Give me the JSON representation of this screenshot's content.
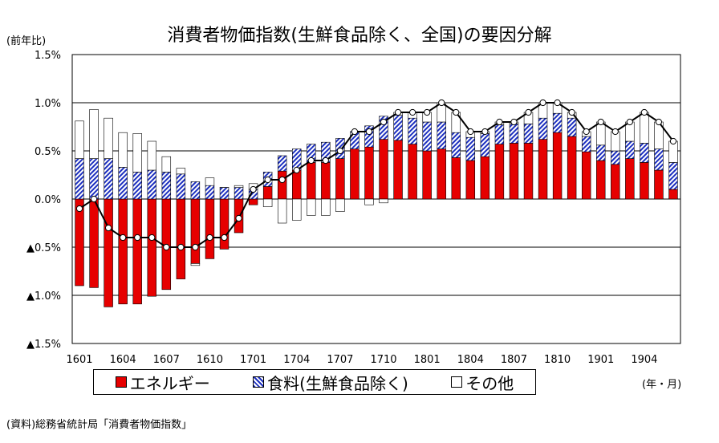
{
  "title": "消費者物価指数(生鮮食品除く、全国)の要因分解",
  "unit_left": "(前年比)",
  "unit_right": "(年・月)",
  "source": "(資料)総務省統計局「消費者物価指数」",
  "colors": {
    "energy": "#e60000",
    "food": "#1c2fbf",
    "other": "#ffffff",
    "line": "#000000"
  },
  "chart_data": {
    "type": "bar",
    "stacked": true,
    "title": "消費者物価指数(生鮮食品除く、全国)の要因分解",
    "ylim": [
      -1.5,
      1.5
    ],
    "yticks": [
      1.5,
      1.0,
      0.5,
      0.0,
      -0.5,
      -1.0,
      -1.5
    ],
    "ytick_labels": [
      "1.5%",
      "1.0%",
      "0.5%",
      "0.0%",
      "▲0.5%",
      "▲1.0%",
      "▲1.5%"
    ],
    "grid": true,
    "legend_position": "bottom",
    "categories": [
      "1601",
      "1602",
      "1603",
      "1604",
      "1605",
      "1606",
      "1607",
      "1608",
      "1609",
      "1610",
      "1611",
      "1612",
      "1701",
      "1702",
      "1703",
      "1704",
      "1705",
      "1706",
      "1707",
      "1708",
      "1709",
      "1710",
      "1711",
      "1712",
      "1801",
      "1802",
      "1803",
      "1804",
      "1805",
      "1806",
      "1807",
      "1808",
      "1809",
      "1810",
      "1811",
      "1812",
      "1901",
      "1902",
      "1903",
      "1904",
      "1905",
      "1906"
    ],
    "xtick_labels": [
      "1601",
      "1604",
      "1607",
      "1610",
      "1701",
      "1704",
      "1707",
      "1710",
      "1801",
      "1804",
      "1807",
      "1810",
      "1901",
      "1904"
    ],
    "series": [
      {
        "name": "エネルギー",
        "kind": "bar",
        "values": [
          -0.9,
          -0.92,
          -1.12,
          -1.09,
          -1.09,
          -1.01,
          -0.94,
          -0.83,
          -0.67,
          -0.62,
          -0.52,
          -0.35,
          -0.06,
          0.13,
          0.29,
          0.3,
          0.38,
          0.38,
          0.42,
          0.52,
          0.54,
          0.62,
          0.61,
          0.57,
          0.5,
          0.52,
          0.43,
          0.4,
          0.44,
          0.57,
          0.58,
          0.58,
          0.62,
          0.69,
          0.65,
          0.49,
          0.4,
          0.36,
          0.42,
          0.38,
          0.3,
          0.1
        ]
      },
      {
        "name": "食料(生鮮食品除く)",
        "kind": "bar",
        "values": [
          0.42,
          0.42,
          0.42,
          0.33,
          0.28,
          0.3,
          0.28,
          0.26,
          0.18,
          0.14,
          0.12,
          0.12,
          0.1,
          0.15,
          0.16,
          0.22,
          0.19,
          0.21,
          0.21,
          0.18,
          0.22,
          0.24,
          0.26,
          0.27,
          0.3,
          0.28,
          0.26,
          0.24,
          0.24,
          0.2,
          0.2,
          0.2,
          0.22,
          0.2,
          0.19,
          0.16,
          0.16,
          0.14,
          0.18,
          0.2,
          0.22,
          0.28
        ]
      },
      {
        "name": "その他",
        "kind": "bar",
        "values": [
          0.39,
          0.51,
          0.42,
          0.36,
          0.4,
          0.3,
          0.16,
          0.06,
          -0.02,
          0.08,
          0.0,
          0.02,
          0.06,
          -0.08,
          -0.25,
          -0.22,
          -0.17,
          -0.17,
          -0.13,
          0.0,
          -0.06,
          -0.04,
          0.03,
          0.06,
          0.1,
          0.2,
          0.21,
          0.06,
          0.02,
          0.03,
          0.02,
          0.12,
          0.16,
          0.11,
          0.06,
          0.05,
          0.24,
          0.2,
          0.2,
          0.32,
          0.28,
          0.22
        ]
      },
      {
        "name": "",
        "kind": "line",
        "values": [
          -0.1,
          0.0,
          -0.3,
          -0.4,
          -0.4,
          -0.4,
          -0.5,
          -0.5,
          -0.5,
          -0.4,
          -0.4,
          -0.2,
          0.1,
          0.2,
          0.2,
          0.3,
          0.4,
          0.4,
          0.5,
          0.7,
          0.7,
          0.8,
          0.9,
          0.9,
          0.9,
          1.0,
          0.9,
          0.7,
          0.7,
          0.8,
          0.8,
          0.9,
          1.0,
          1.0,
          0.9,
          0.7,
          0.8,
          0.7,
          0.8,
          0.9,
          0.8,
          0.6
        ]
      }
    ]
  },
  "legend": {
    "energy": "エネルギー",
    "food": "食料(生鮮食品除く)",
    "other": "その他"
  }
}
